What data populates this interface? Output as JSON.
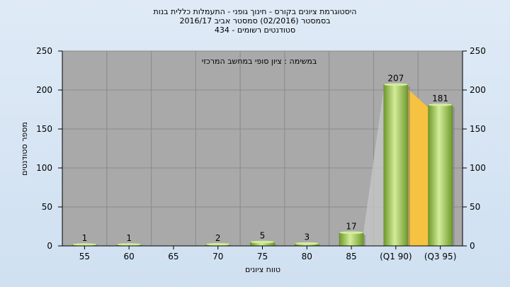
{
  "chart_data": {
    "type": "bar",
    "title_lines": [
      "היסטוגרמת ציונים בקורס - חינוך גופני - התעמלות כללית בנות",
      "בסמסטר  (02/2016)  סמסטר אביב 2016/17",
      "סטודנטים רשומים - 434"
    ],
    "annotation": "במשימה : ציון סופי במחשב המרכזי",
    "xlabel": "טווח ציונים",
    "ylabel": "מספר סטודנטים",
    "ylim": [
      0,
      250
    ],
    "yticks": [
      "0",
      "50",
      "100",
      "150",
      "200",
      "250"
    ],
    "categories": [
      "55",
      "60",
      "65",
      "70",
      "75",
      "80",
      "85",
      "(Q1 90)",
      "(Q3 95)"
    ],
    "values": [
      1,
      1,
      0,
      2,
      5,
      3,
      17,
      207,
      181
    ],
    "value_labels": [
      "1",
      "1",
      "",
      "2",
      "5",
      "3",
      "17",
      "207",
      "181"
    ],
    "grid": true,
    "colors": {
      "plot_bg": "#a9a9a9",
      "bar_light": "#d3ec9a",
      "bar_dark": "#6f9a2c",
      "quartile_band": "#f7c242",
      "shadow": "#c8c8c8"
    }
  }
}
